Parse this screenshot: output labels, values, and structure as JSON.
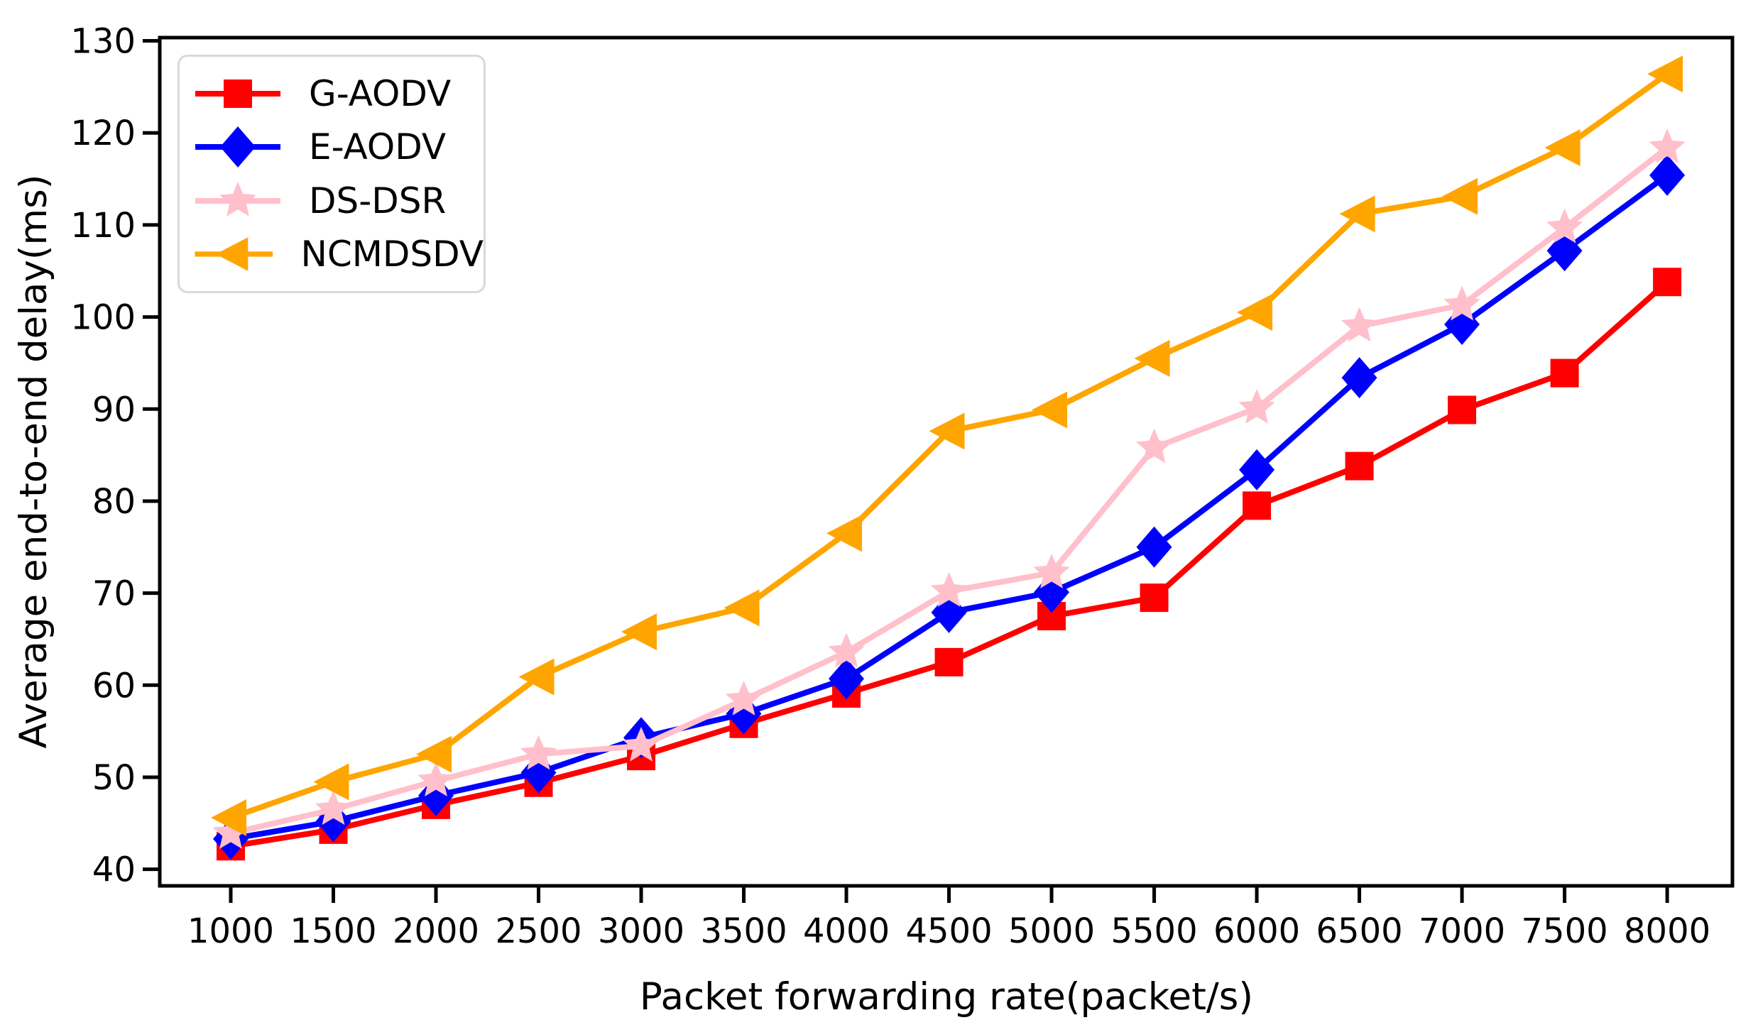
{
  "figure": {
    "title": "",
    "type": "line-chart"
  },
  "chart_data": {
    "type": "line",
    "title": "",
    "xlabel": "Packet forwarding rate(packet/s)",
    "ylabel": "Average end-to-end delay(ms)",
    "x": [
      1000,
      1500,
      2000,
      2500,
      3000,
      3500,
      4000,
      4500,
      5000,
      5500,
      6000,
      6500,
      7000,
      7500,
      8000
    ],
    "x_ticks": [
      1000,
      1500,
      2000,
      2500,
      3000,
      3500,
      4000,
      4500,
      5000,
      5500,
      6000,
      6500,
      7000,
      7500,
      8000
    ],
    "y_ticks": [
      40,
      50,
      60,
      70,
      80,
      90,
      100,
      110,
      120,
      130
    ],
    "xlim": [
      654,
      8318
    ],
    "ylim": [
      38.2,
      130.35
    ],
    "grid": false,
    "legend_position": "upper-left",
    "series": [
      {
        "name": "G-AODV",
        "color": "#ff0000",
        "marker": "square",
        "values": [
          42.5,
          44.3,
          47.0,
          49.4,
          52.3,
          55.8,
          59.1,
          62.5,
          67.5,
          69.5,
          79.5,
          83.8,
          89.9,
          93.9,
          103.8
        ]
      },
      {
        "name": "E-AODV",
        "color": "#0000ff",
        "marker": "diamond",
        "values": [
          43.3,
          45.2,
          48.0,
          50.5,
          54.3,
          56.9,
          60.7,
          67.9,
          70.1,
          75.0,
          83.4,
          93.4,
          99.2,
          107.2,
          115.4
        ]
      },
      {
        "name": "DS-DSR",
        "color": "#ffc0cb",
        "marker": "star",
        "values": [
          43.9,
          46.5,
          49.6,
          52.5,
          53.4,
          58.4,
          63.6,
          70.2,
          72.2,
          85.8,
          90.1,
          99.0,
          101.3,
          109.7,
          118.4
        ]
      },
      {
        "name": "NCMDSDV",
        "color": "#ffa500",
        "marker": "triangle-left",
        "values": [
          45.6,
          49.5,
          52.5,
          60.9,
          65.8,
          68.4,
          76.5,
          87.6,
          89.9,
          95.5,
          100.5,
          111.2,
          113.1,
          118.4,
          126.4
        ]
      }
    ],
    "axis_color": "#000000",
    "background_color": "#ffffff",
    "legend_border_color": "#d9d9d9"
  }
}
